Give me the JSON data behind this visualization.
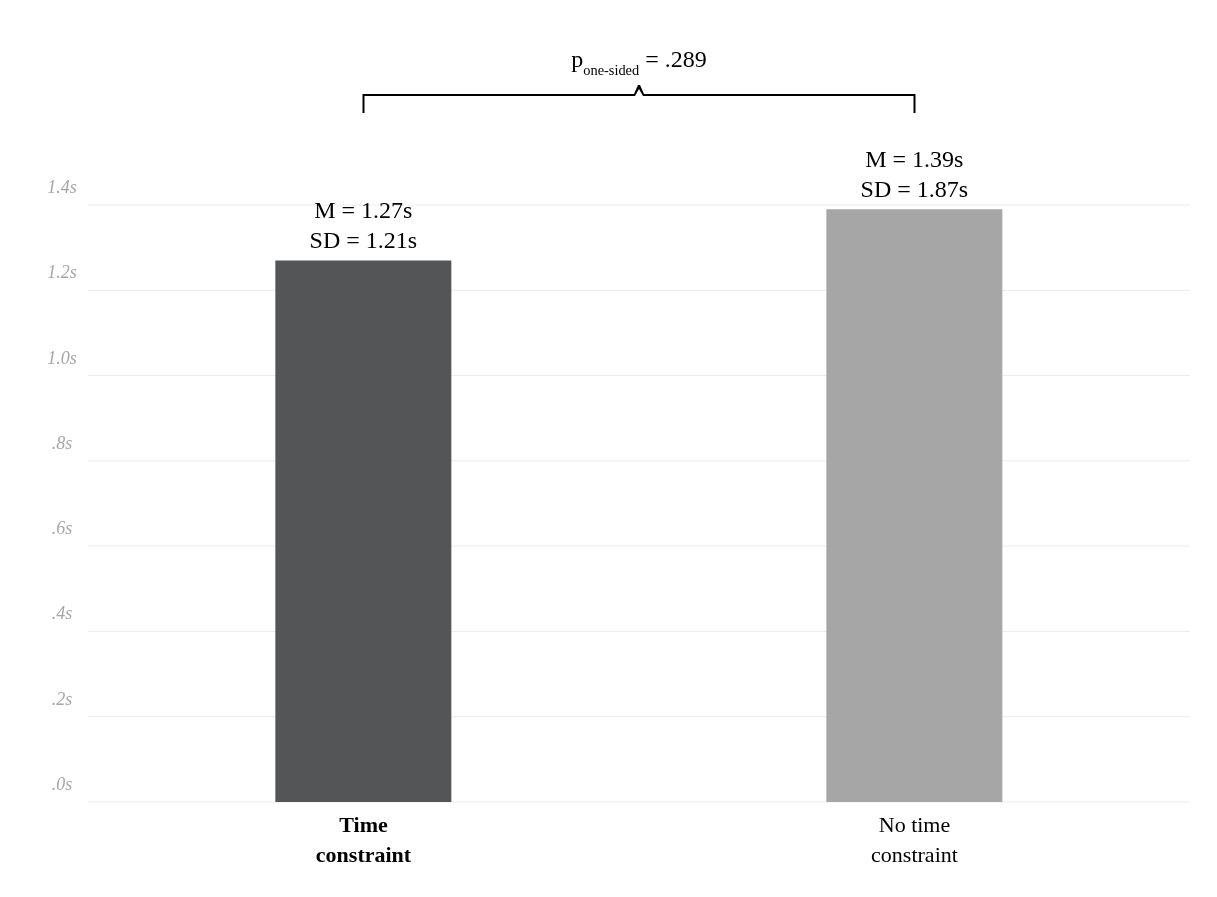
{
  "chart_data": {
    "type": "bar",
    "categories": [
      "Time constraint",
      "No time constraint"
    ],
    "values": [
      1.27,
      1.39
    ],
    "colors": [
      "#545557",
      "#a6a6a6"
    ],
    "value_labels": [
      "M = 1.27s\nSD = 1.21s",
      "M = 1.39s\nSD = 1.87s"
    ],
    "ylim": [
      0,
      1.4
    ],
    "yticks": [
      {
        "value": 0,
        "label": ".0s"
      },
      {
        "value": 0.2,
        "label": ".2s"
      },
      {
        "value": 0.4,
        "label": ".4s"
      },
      {
        "value": 0.6,
        "label": ".6s"
      },
      {
        "value": 0.8,
        "label": ".8s"
      },
      {
        "value": 1.0,
        "label": "1.0s"
      },
      {
        "value": 1.2,
        "label": "1.2s"
      },
      {
        "value": 1.4,
        "label": "1.4s"
      }
    ],
    "grid": "y",
    "annotations": [
      "p$_{one-sided}$ = .289"
    ]
  }
}
